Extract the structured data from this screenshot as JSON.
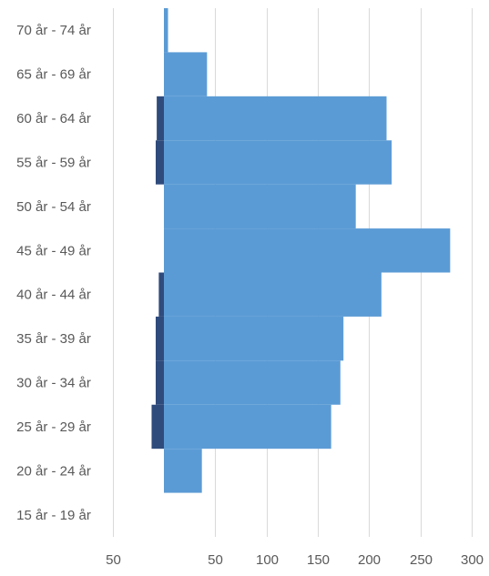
{
  "chart_data": {
    "type": "bar",
    "orientation": "horizontal",
    "stacked": "population-pyramid",
    "title": "",
    "xlabel": "",
    "ylabel": "",
    "categories": [
      "70 år - 74 år",
      "65 år - 69 år",
      "60 år - 64 år",
      "55 år - 59 år",
      "50 år - 54 år",
      "45 år - 49 år",
      "40 år - 44 år",
      "35 år - 39 år",
      "30 år - 34 år",
      "25 år - 29 år",
      "20 år - 24 år",
      "15 år - 19 år"
    ],
    "series": [
      {
        "color": "#2f4b7c",
        "values": [
          0,
          0,
          7,
          8,
          0,
          0,
          5,
          8,
          8,
          12,
          0,
          0
        ]
      },
      {
        "color": "#5b9bd5",
        "values": [
          4,
          42,
          217,
          222,
          187,
          279,
          212,
          175,
          172,
          163,
          37,
          0
        ]
      }
    ],
    "xlim": [
      -50,
      300
    ],
    "xtick_values": [
      -50,
      50,
      100,
      150,
      200,
      250,
      300
    ],
    "xtick_labels": [
      "50",
      "50",
      "100",
      "150",
      "200",
      "250",
      "300"
    ],
    "grid": true,
    "legend": "none"
  }
}
